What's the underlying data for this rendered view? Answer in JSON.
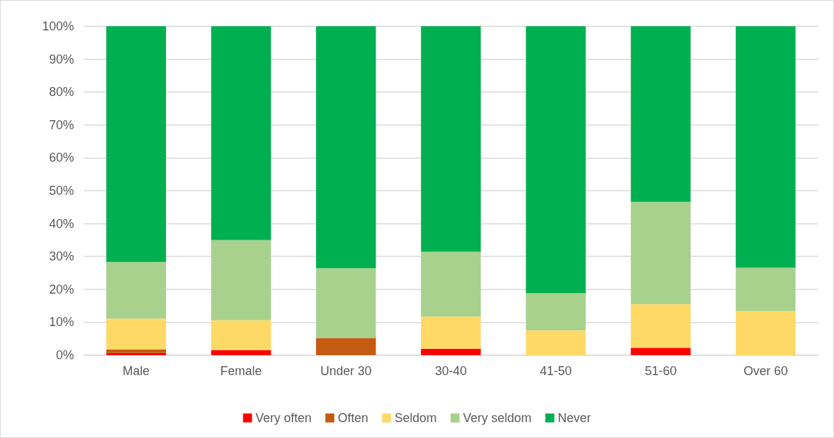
{
  "chart_data": {
    "type": "bar",
    "stacked": true,
    "categories": [
      "Male",
      "Female",
      "Under 30",
      "30-40",
      "41-50",
      "51-60",
      "Over 60"
    ],
    "series": [
      {
        "name": "Very often",
        "color": "#ff0000",
        "values": [
          0.7,
          1.5,
          0,
          1.9,
          0,
          2.2,
          0
        ]
      },
      {
        "name": "Often",
        "color": "#c55a11",
        "values": [
          1.0,
          0,
          5.2,
          0,
          0,
          0,
          0
        ]
      },
      {
        "name": "Seldom",
        "color": "#ffd966",
        "values": [
          9.4,
          9.1,
          0,
          9.8,
          7.5,
          13.3,
          13.4
        ]
      },
      {
        "name": "Very seldom",
        "color": "#a9d18e",
        "values": [
          17.2,
          24.4,
          21.2,
          19.7,
          11.3,
          31.1,
          13.2
        ]
      },
      {
        "name": "Never",
        "color": "#00b050",
        "values": [
          71.7,
          65.0,
          73.6,
          68.6,
          81.2,
          53.4,
          73.4
        ]
      }
    ],
    "ylim": [
      0,
      100
    ],
    "yticks": [
      {
        "value": 0,
        "label": "0%"
      },
      {
        "value": 10,
        "label": "10%"
      },
      {
        "value": 20,
        "label": "20%"
      },
      {
        "value": 30,
        "label": "30%"
      },
      {
        "value": 40,
        "label": "40%"
      },
      {
        "value": 50,
        "label": "50%"
      },
      {
        "value": 60,
        "label": "60%"
      },
      {
        "value": 70,
        "label": "70%"
      },
      {
        "value": 80,
        "label": "80%"
      },
      {
        "value": 90,
        "label": "90%"
      },
      {
        "value": 100,
        "label": "100%"
      }
    ],
    "grid": "y",
    "legend": "bottom"
  }
}
